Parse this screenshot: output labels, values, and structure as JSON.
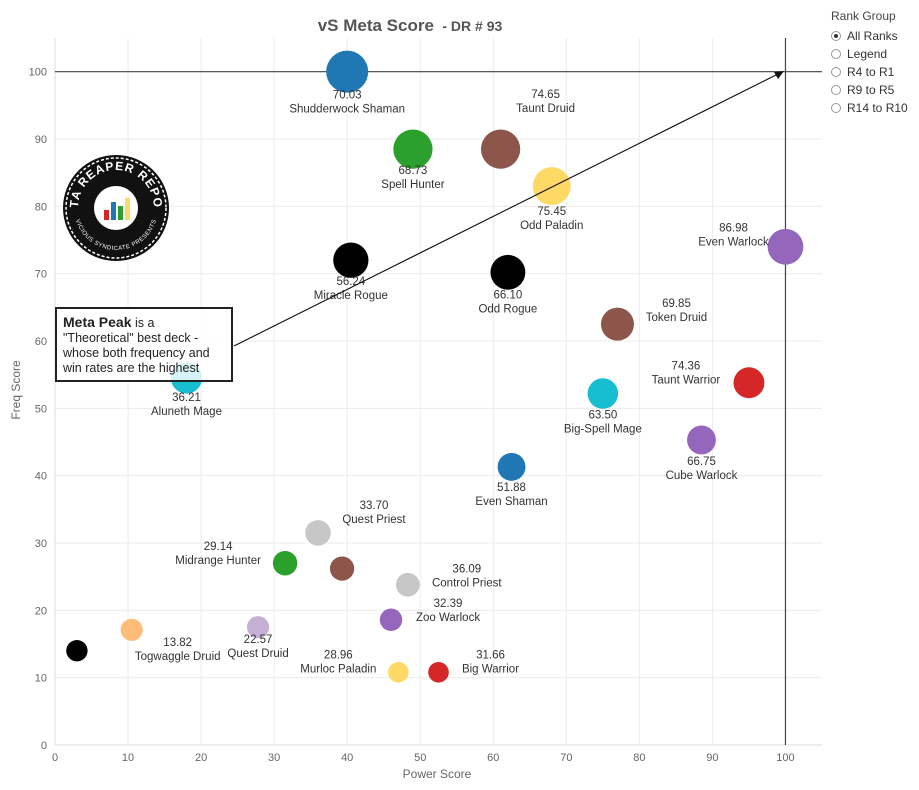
{
  "header": {
    "title": "vS Meta Score",
    "subtitle": "- DR # 93"
  },
  "rank_group": {
    "title": "Rank Group",
    "options": [
      {
        "label": "All Ranks",
        "selected": true
      },
      {
        "label": "Legend",
        "selected": false
      },
      {
        "label": "R4 to R1",
        "selected": false
      },
      {
        "label": "R9 to R5",
        "selected": false
      },
      {
        "label": "R14 to R10",
        "selected": false
      }
    ]
  },
  "note": {
    "bold": "Meta Peak",
    "text": " is a \"Theoretical\" best deck - whose both frequency and win rates are the highest"
  },
  "logo": {
    "text_top": "DATA REAPER REPORT",
    "text_bottom": "VICIOUS SYNDICATE PRESENTS"
  },
  "chart_data": {
    "type": "scatter",
    "title": "vS Meta Score - DR # 93",
    "xlabel": "Power Score",
    "ylabel": "Freq Score",
    "xlim": [
      0,
      105
    ],
    "ylim": [
      0,
      105
    ],
    "xticks": [
      0,
      10,
      20,
      30,
      40,
      50,
      60,
      70,
      80,
      90,
      100
    ],
    "yticks": [
      0,
      10,
      20,
      30,
      40,
      50,
      60,
      70,
      80,
      90,
      100
    ],
    "grid": true,
    "reference_lines": {
      "x": 100,
      "y": 100
    },
    "points": [
      {
        "name": "Shudderwock Shaman",
        "score": "70.03",
        "x": 40,
        "y": 100,
        "color": "#1f77b4"
      },
      {
        "name": "Spell Hunter",
        "score": "68.73",
        "x": 49,
        "y": 88.5,
        "color": "#2ca02c"
      },
      {
        "name": "Taunt Druid",
        "score": "74.65",
        "x": 61,
        "y": 88.5,
        "color": "#8c564b"
      },
      {
        "name": "Odd Paladin",
        "score": "75.45",
        "x": 68,
        "y": 83,
        "color": "#ffd966"
      },
      {
        "name": "Even Warlock",
        "score": "86.98",
        "x": 100,
        "y": 74,
        "color": "#9467bd"
      },
      {
        "name": "Miracle Rogue",
        "score": "56.24",
        "x": 40.5,
        "y": 72,
        "color": "#000000"
      },
      {
        "name": "Odd Rogue",
        "score": "66.10",
        "x": 62,
        "y": 70.2,
        "color": "#000000"
      },
      {
        "name": "Token Druid",
        "score": "69.85",
        "x": 77,
        "y": 62.5,
        "color": "#8c564b"
      },
      {
        "name": "Taunt Warrior",
        "score": "74.36",
        "x": 95,
        "y": 53.8,
        "color": "#d62728"
      },
      {
        "name": "Big-Spell Mage",
        "score": "63.50",
        "x": 75,
        "y": 52.2,
        "color": "#17becf"
      },
      {
        "name": "Aluneth Mage",
        "score": "36.21",
        "x": 18,
        "y": 54.5,
        "color": "#17becf"
      },
      {
        "name": "Cube Warlock",
        "score": "66.75",
        "x": 88.5,
        "y": 45.3,
        "color": "#9467bd"
      },
      {
        "name": "Even Shaman",
        "score": "51.88",
        "x": 62.5,
        "y": 41.3,
        "color": "#1f77b4"
      },
      {
        "name": "Quest Priest",
        "score": "33.70",
        "x": 36,
        "y": 31.5,
        "color": "#c7c7c7"
      },
      {
        "name": "Midrange Hunter",
        "score": "29.14",
        "x": 31.5,
        "y": 27,
        "color": "#2ca02c"
      },
      {
        "name": "",
        "score": "",
        "x": 39.3,
        "y": 26.2,
        "color": "#8c564b"
      },
      {
        "name": "Control Priest",
        "score": "36.09",
        "x": 48.3,
        "y": 23.8,
        "color": "#c7c7c7"
      },
      {
        "name": "Zoo Warlock",
        "score": "32.39",
        "x": 46,
        "y": 18.6,
        "color": "#9467bd"
      },
      {
        "name": "",
        "score": "",
        "x": 3,
        "y": 14,
        "color": "#000000"
      },
      {
        "name": "Togwaggle Druid",
        "score": "13.82",
        "x": 10.5,
        "y": 17.1,
        "color": "#ffbb78"
      },
      {
        "name": "Quest Druid",
        "score": "22.57",
        "x": 27.8,
        "y": 17.5,
        "color": "#c5b0d5"
      },
      {
        "name": "Murloc Paladin",
        "score": "28.96",
        "x": 47,
        "y": 10.8,
        "color": "#ffd966"
      },
      {
        "name": "Big Warrior",
        "score": "31.66",
        "x": 52.5,
        "y": 10.8,
        "color": "#d62728"
      }
    ]
  }
}
